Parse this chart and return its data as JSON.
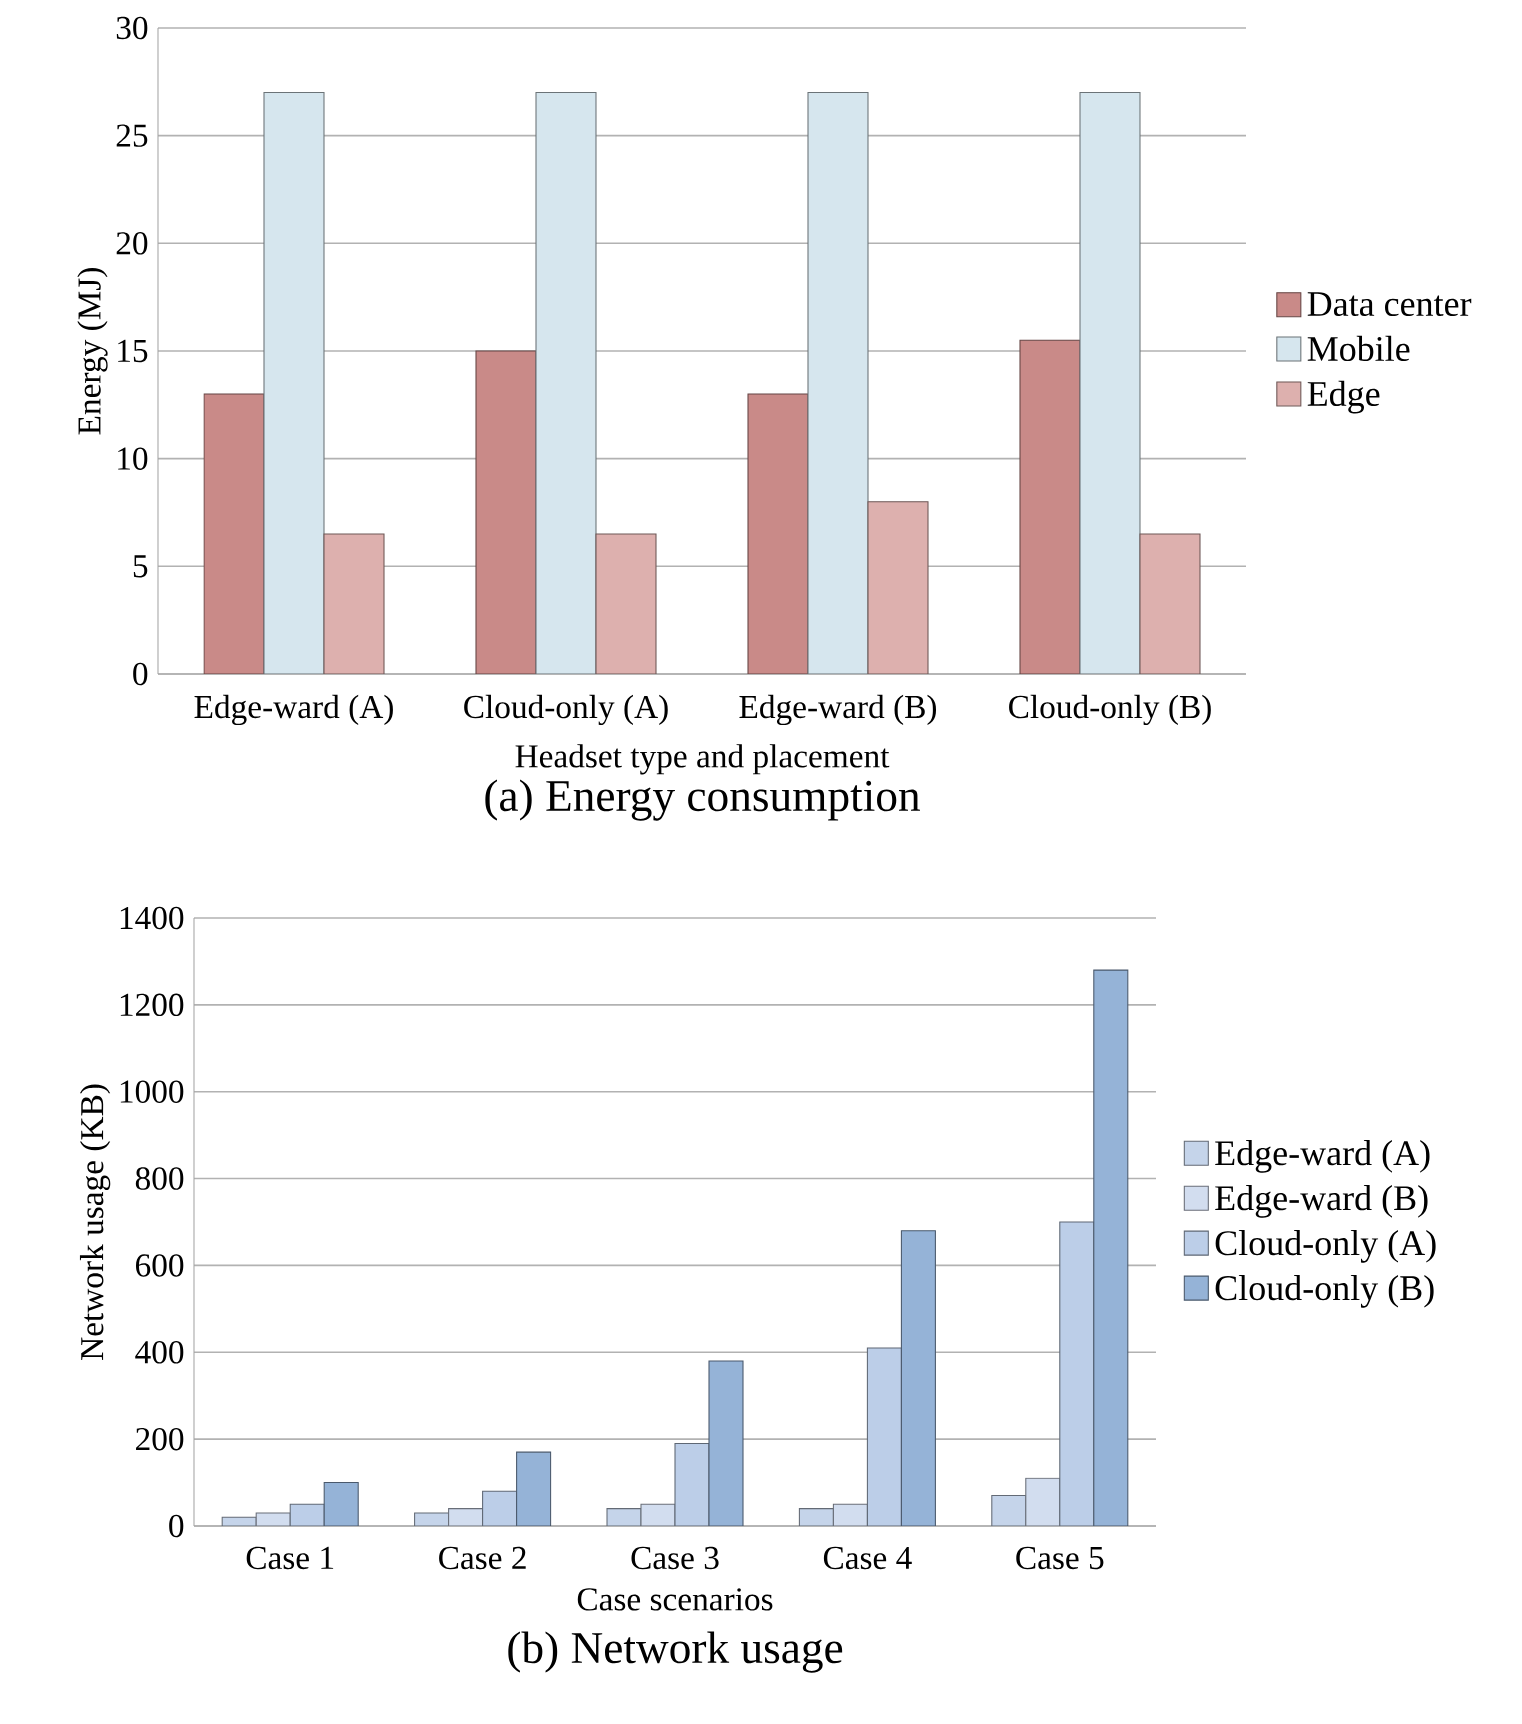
{
  "chart_data": [
    {
      "type": "bar",
      "title": "(a) Energy consumption",
      "xlabel": "Headset type and placement",
      "ylabel": "Energy (MJ)",
      "categories": [
        "Edge-ward (A)",
        "Cloud-only (A)",
        "Edge-ward (B)",
        "Cloud-only (B)"
      ],
      "series": [
        {
          "name": "Data center",
          "color": "#c98a88",
          "values": [
            13,
            15,
            13,
            15.5
          ]
        },
        {
          "name": "Mobile",
          "color": "#d6e6ee",
          "values": [
            27,
            27,
            27,
            27
          ]
        },
        {
          "name": "Edge",
          "color": "#ddb0ae",
          "values": [
            6.5,
            6.5,
            8,
            6.5
          ]
        }
      ],
      "ylim": [
        0,
        30
      ],
      "yticks": [
        0,
        5,
        10,
        15,
        20,
        25,
        30
      ],
      "grid": "y",
      "legend": "right"
    },
    {
      "type": "bar",
      "title": "(b) Network usage",
      "xlabel": "Case scenarios",
      "ylabel": "Network usage (KB)",
      "categories": [
        "Case 1",
        "Case 2",
        "Case 3",
        "Case 4",
        "Case 5"
      ],
      "series": [
        {
          "name": "Edge-ward (A)",
          "color": "#c5d4ea",
          "values": [
            20,
            30,
            40,
            40,
            70
          ]
        },
        {
          "name": "Edge-ward (B)",
          "color": "#d2ddef",
          "values": [
            30,
            40,
            50,
            50,
            110
          ]
        },
        {
          "name": "Cloud-only (A)",
          "color": "#bccee8",
          "values": [
            50,
            80,
            190,
            410,
            700
          ]
        },
        {
          "name": "Cloud-only (B)",
          "color": "#95b3d7",
          "values": [
            100,
            170,
            380,
            680,
            1280
          ]
        }
      ],
      "ylim": [
        0,
        1400
      ],
      "yticks": [
        0,
        200,
        400,
        600,
        800,
        1000,
        1200,
        1400
      ],
      "grid": "y",
      "legend": "right"
    }
  ]
}
